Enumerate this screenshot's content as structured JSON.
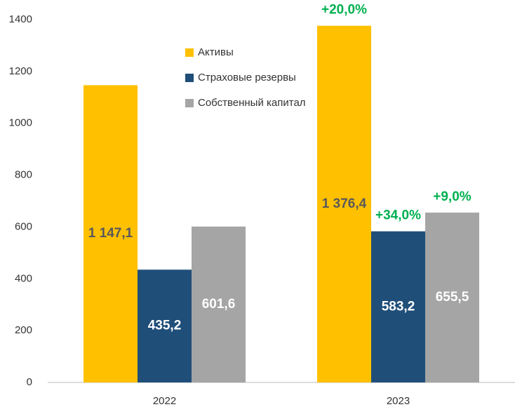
{
  "chart_data": {
    "type": "bar",
    "categories": [
      "2022",
      "2023"
    ],
    "series": [
      {
        "name": "Активы",
        "color": "#FFC000",
        "values": [
          1147.1,
          1376.4
        ],
        "value_labels": [
          "1 147,1",
          "1 376,4"
        ],
        "label_color": "#595959",
        "change_labels": [
          null,
          "+20,0%"
        ]
      },
      {
        "name": "Страховые резервы",
        "color": "#1F4E79",
        "values": [
          435.2,
          583.2
        ],
        "value_labels": [
          "435,2",
          "583,2"
        ],
        "label_color": "#FFFFFF",
        "change_labels": [
          null,
          "+34,0%"
        ]
      },
      {
        "name": "Собственный капитал",
        "color": "#A5A5A5",
        "values": [
          601.6,
          655.5
        ],
        "value_labels": [
          "601,6",
          "655,5"
        ],
        "label_color": "#FFFFFF",
        "change_labels": [
          null,
          "+9,0%"
        ]
      }
    ],
    "change_color": "#00B050",
    "ylim": [
      0,
      1400
    ],
    "yticks": [
      0,
      200,
      400,
      600,
      800,
      1000,
      1200,
      1400
    ],
    "grid": false,
    "legend": "top"
  }
}
